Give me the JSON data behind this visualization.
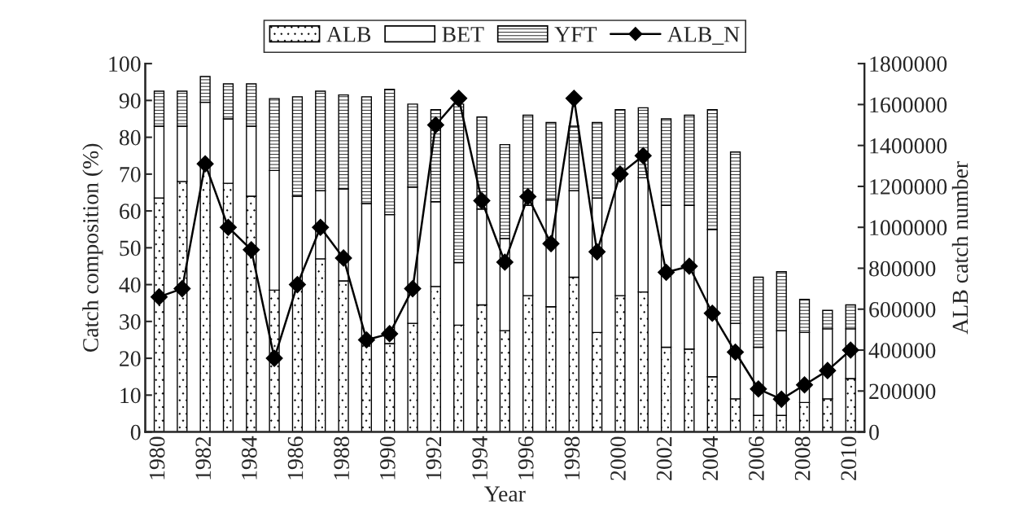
{
  "chart_data": {
    "type": "bar",
    "stacked": true,
    "xlabel": "Year",
    "ylabel": "Catch composition (%)",
    "y2label": "ALB catch number",
    "categories": [
      "1980",
      null,
      "1982",
      null,
      "1984",
      null,
      "1986",
      null,
      "1988",
      null,
      "1990",
      null,
      "1992",
      null,
      "1994",
      null,
      "1996",
      null,
      "1998",
      null,
      "2000",
      null,
      "2002",
      null,
      "2004",
      null,
      "2006",
      null,
      "2008",
      null,
      "2010"
    ],
    "series": [
      {
        "name": "ALB",
        "color": "#000000",
        "values": [
          63.5,
          68,
          72,
          67.5,
          64,
          38.5,
          40,
          47,
          41,
          25,
          24,
          29.5,
          39.5,
          29,
          34.5,
          27.5,
          37,
          34,
          42,
          27,
          37,
          38,
          23,
          22.5,
          15,
          9,
          4.5,
          4.5,
          8,
          9,
          14.5
        ]
      },
      {
        "name": "BET",
        "color": "#ffffff",
        "values": [
          19.5,
          15,
          17.5,
          17.5,
          19,
          32.5,
          24,
          18.5,
          25,
          37,
          35,
          37,
          23,
          17,
          26,
          25,
          24.5,
          29,
          23.5,
          36.5,
          33,
          31,
          38.5,
          39,
          40,
          20.5,
          18.5,
          23,
          19,
          19,
          13.5
        ]
      },
      {
        "name": "YFT",
        "color": "#000000",
        "values": [
          9.5,
          9.5,
          7,
          9.5,
          11.5,
          19.5,
          27,
          27,
          25.5,
          29,
          34,
          22.5,
          25,
          43,
          25,
          25.5,
          24.5,
          21,
          17.5,
          20.5,
          17.5,
          19,
          23.5,
          24.5,
          32.5,
          46.5,
          19,
          16,
          9,
          5,
          6.5
        ]
      },
      {
        "name": "ALB_N",
        "type": "line",
        "axis": "y2",
        "color": "#000000",
        "marker": "diamond",
        "values": [
          660000,
          700000,
          1310000,
          1000000,
          890000,
          360000,
          720000,
          1000000,
          850000,
          450000,
          480000,
          700000,
          1500000,
          1630000,
          1130000,
          830000,
          1150000,
          920000,
          1630000,
          880000,
          1260000,
          1350000,
          780000,
          810000,
          580000,
          390000,
          210000,
          160000,
          230000,
          300000,
          400000
        ]
      }
    ],
    "ylim": [
      0,
      100
    ],
    "yticks": [
      0,
      10,
      20,
      30,
      40,
      50,
      60,
      70,
      80,
      90,
      100
    ],
    "y2lim": [
      0,
      1800000
    ],
    "y2ticks": [
      0,
      200000,
      400000,
      600000,
      800000,
      1000000,
      1200000,
      1400000,
      1600000,
      1800000
    ],
    "grid": false,
    "legend": "top"
  }
}
